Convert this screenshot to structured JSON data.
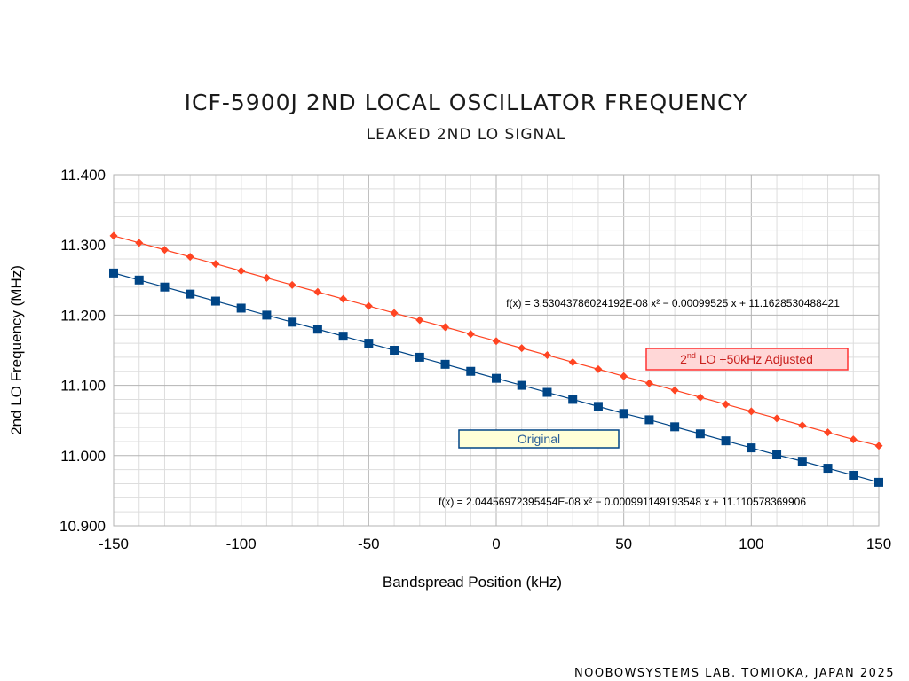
{
  "chart_data": {
    "type": "line",
    "title": "ICF-5900J 2ND LOCAL OSCILLATOR FREQUENCY",
    "subtitle": "LEAKED 2ND LO SIGNAL",
    "xlabel": "Bandspread Position (kHz)",
    "ylabel": "2nd LO Frequency (MHz)",
    "xlim": [
      -150,
      150
    ],
    "ylim": [
      10.9,
      11.4
    ],
    "x_ticks": [
      "-150",
      "-100",
      "-50",
      "0",
      "50",
      "100",
      "150"
    ],
    "x_tick_values": [
      -150,
      -100,
      -50,
      0,
      50,
      100,
      150
    ],
    "y_ticks": [
      "10.900",
      "11.000",
      "11.100",
      "11.200",
      "11.300",
      "11.400"
    ],
    "y_tick_values": [
      10.9,
      11.0,
      11.1,
      11.2,
      11.3,
      11.4
    ],
    "grid": true,
    "x": [
      -150,
      -140,
      -130,
      -120,
      -110,
      -100,
      -90,
      -80,
      -70,
      -60,
      -50,
      -40,
      -30,
      -20,
      -10,
      0,
      10,
      20,
      30,
      40,
      50,
      60,
      70,
      80,
      90,
      100,
      110,
      120,
      130,
      140,
      150
    ],
    "series": [
      {
        "name": "2nd LO +50kHz Adjusted",
        "color": "#ff4422",
        "marker": "diamond",
        "values": [
          11.313,
          11.303,
          11.293,
          11.283,
          11.273,
          11.263,
          11.253,
          11.243,
          11.233,
          11.223,
          11.213,
          11.203,
          11.193,
          11.183,
          11.173,
          11.163,
          11.153,
          11.143,
          11.133,
          11.123,
          11.113,
          11.103,
          11.093,
          11.083,
          11.073,
          11.063,
          11.053,
          11.043,
          11.033,
          11.023,
          11.014
        ],
        "equation": "f(x) = 3.53043786024192E-08 x² − 0.00099525 x + 11.1628530488421"
      },
      {
        "name": "Original",
        "color": "#004586",
        "marker": "square",
        "values": [
          11.26,
          11.25,
          11.24,
          11.23,
          11.22,
          11.21,
          11.2,
          11.19,
          11.18,
          11.17,
          11.16,
          11.15,
          11.14,
          11.13,
          11.12,
          11.11,
          11.1,
          11.09,
          11.08,
          11.07,
          11.06,
          11.051,
          11.041,
          11.031,
          11.021,
          11.011,
          11.001,
          10.992,
          10.982,
          10.972,
          10.962
        ],
        "equation": "f(x) = 2.04456972395454E-08 x² − 0.000991149193548 x + 11.110578369906"
      }
    ],
    "legend_labels": {
      "adjusted_prefix": "2",
      "adjusted_sup": "nd",
      "adjusted_rest": " LO +50kHz Adjusted",
      "original": "Original"
    }
  },
  "footer": "NOOBOWSYSTEMS LAB. TOMIOKA, JAPAN 2025",
  "colors": {
    "adjusted_label_bg": "#ffd7d7",
    "adjusted_label_border": "#ff3333",
    "adjusted_label_text": "#c9211e",
    "original_label_bg": "#ffffd7",
    "original_label_border": "#004586",
    "original_label_text": "#2a6099",
    "grid": "#b3b3b3"
  }
}
